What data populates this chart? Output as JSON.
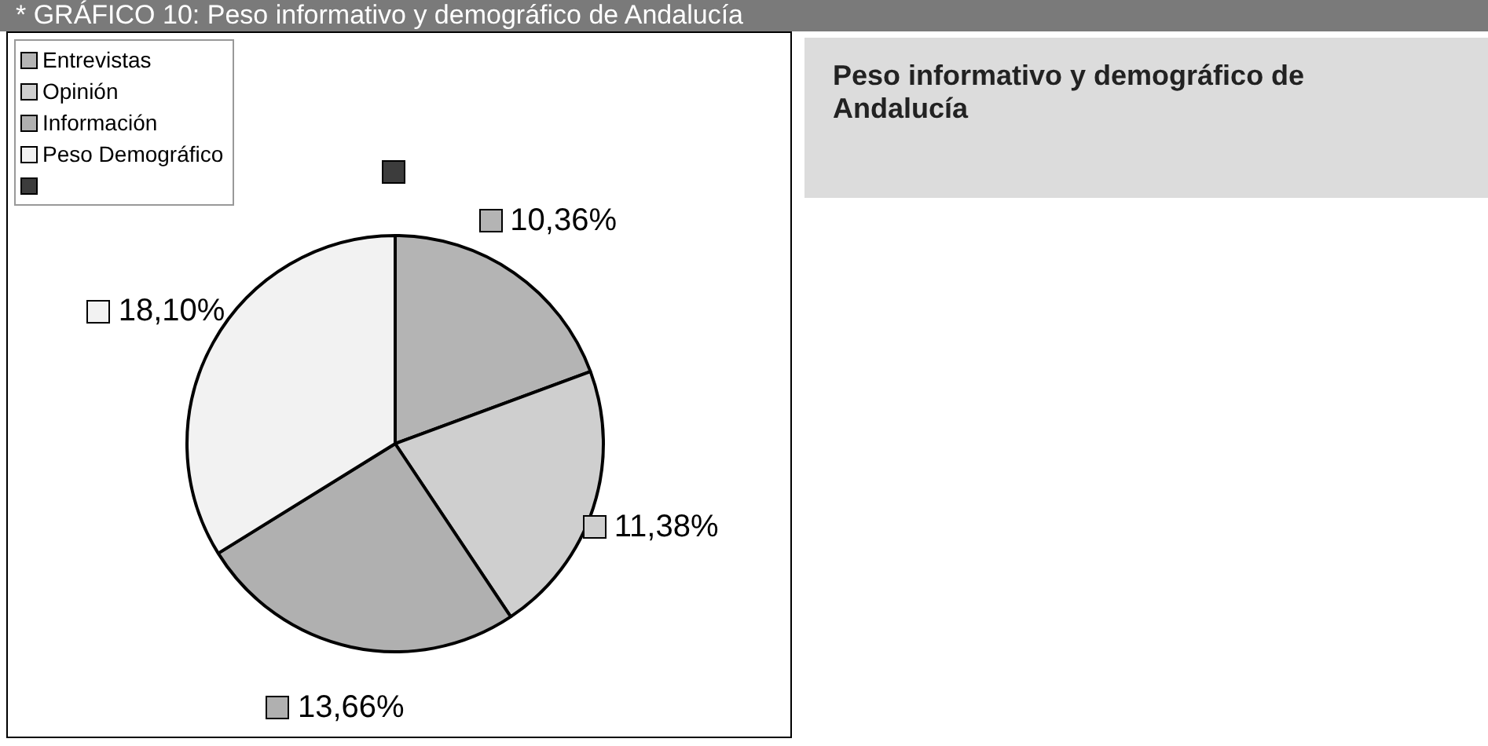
{
  "chart_data": {
    "type": "pie",
    "title": "* GRÁFICO 10: Peso informativo y demográfico de Andalucía",
    "subtitle": "Peso informativo y demográfico de Andalucía",
    "categories": [
      "Entrevistas",
      "Opinión",
      "Información",
      "Peso Demográfico",
      null
    ],
    "values": [
      10.36,
      11.38,
      13.66,
      18.1,
      0
    ],
    "value_labels": [
      "10,36%",
      "11,38%",
      "13,66%",
      "18,10%",
      null
    ],
    "colors": [
      "#b4b4b4",
      "#cfcfcf",
      "#b0b0b0",
      "#f2f2f2",
      "#3c3c3c"
    ],
    "legend": "top left"
  }
}
